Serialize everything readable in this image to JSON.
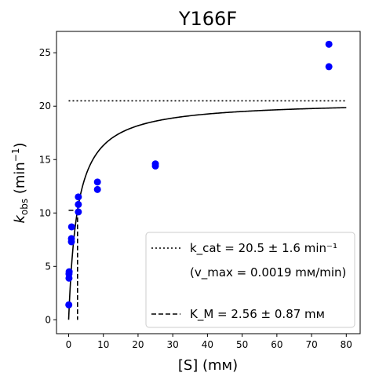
{
  "chart_data": {
    "type": "scatter",
    "title": "Y166F",
    "xlabel": "[S] (mм)",
    "ylabel": "k_obs (min⁻¹)",
    "xlim": [
      -3.5,
      84
    ],
    "ylim": [
      -1.3,
      27
    ],
    "x_ticks": [
      0,
      10,
      20,
      30,
      40,
      50,
      60,
      70,
      80
    ],
    "y_ticks": [
      0,
      5,
      10,
      15,
      20,
      25
    ],
    "grid": false,
    "legend_position": "lower-right",
    "points_color": "#0000ff",
    "points": [
      {
        "x": 0.05,
        "y": 1.4
      },
      {
        "x": 0.1,
        "y": 3.9
      },
      {
        "x": 0.1,
        "y": 4.3
      },
      {
        "x": 0.15,
        "y": 4.5
      },
      {
        "x": 0.8,
        "y": 7.3
      },
      {
        "x": 0.8,
        "y": 7.6
      },
      {
        "x": 0.85,
        "y": 8.7
      },
      {
        "x": 2.8,
        "y": 10.1
      },
      {
        "x": 2.8,
        "y": 10.8
      },
      {
        "x": 2.8,
        "y": 11.5
      },
      {
        "x": 8.3,
        "y": 12.2
      },
      {
        "x": 8.3,
        "y": 12.9
      },
      {
        "x": 25,
        "y": 14.4
      },
      {
        "x": 25,
        "y": 14.6
      },
      {
        "x": 75,
        "y": 23.7
      },
      {
        "x": 75,
        "y": 25.8
      }
    ],
    "fit": {
      "kcat": 20.5,
      "KM": 2.56,
      "x_range": [
        0,
        80
      ],
      "color": "#000000"
    },
    "kcat_line": {
      "y": 20.5,
      "x_range": [
        0,
        80
      ],
      "style": "dotted"
    },
    "km_line": {
      "x": 2.56,
      "y": 10.25,
      "style": "dashed"
    },
    "legend": {
      "kcat_label": "k_cat = 20.5 ± 1.6 min⁻¹",
      "vmax_label": "(v_max = 0.0019 mм/min)",
      "km_label": "K_M = 2.56 ± 0.87 mм"
    }
  }
}
